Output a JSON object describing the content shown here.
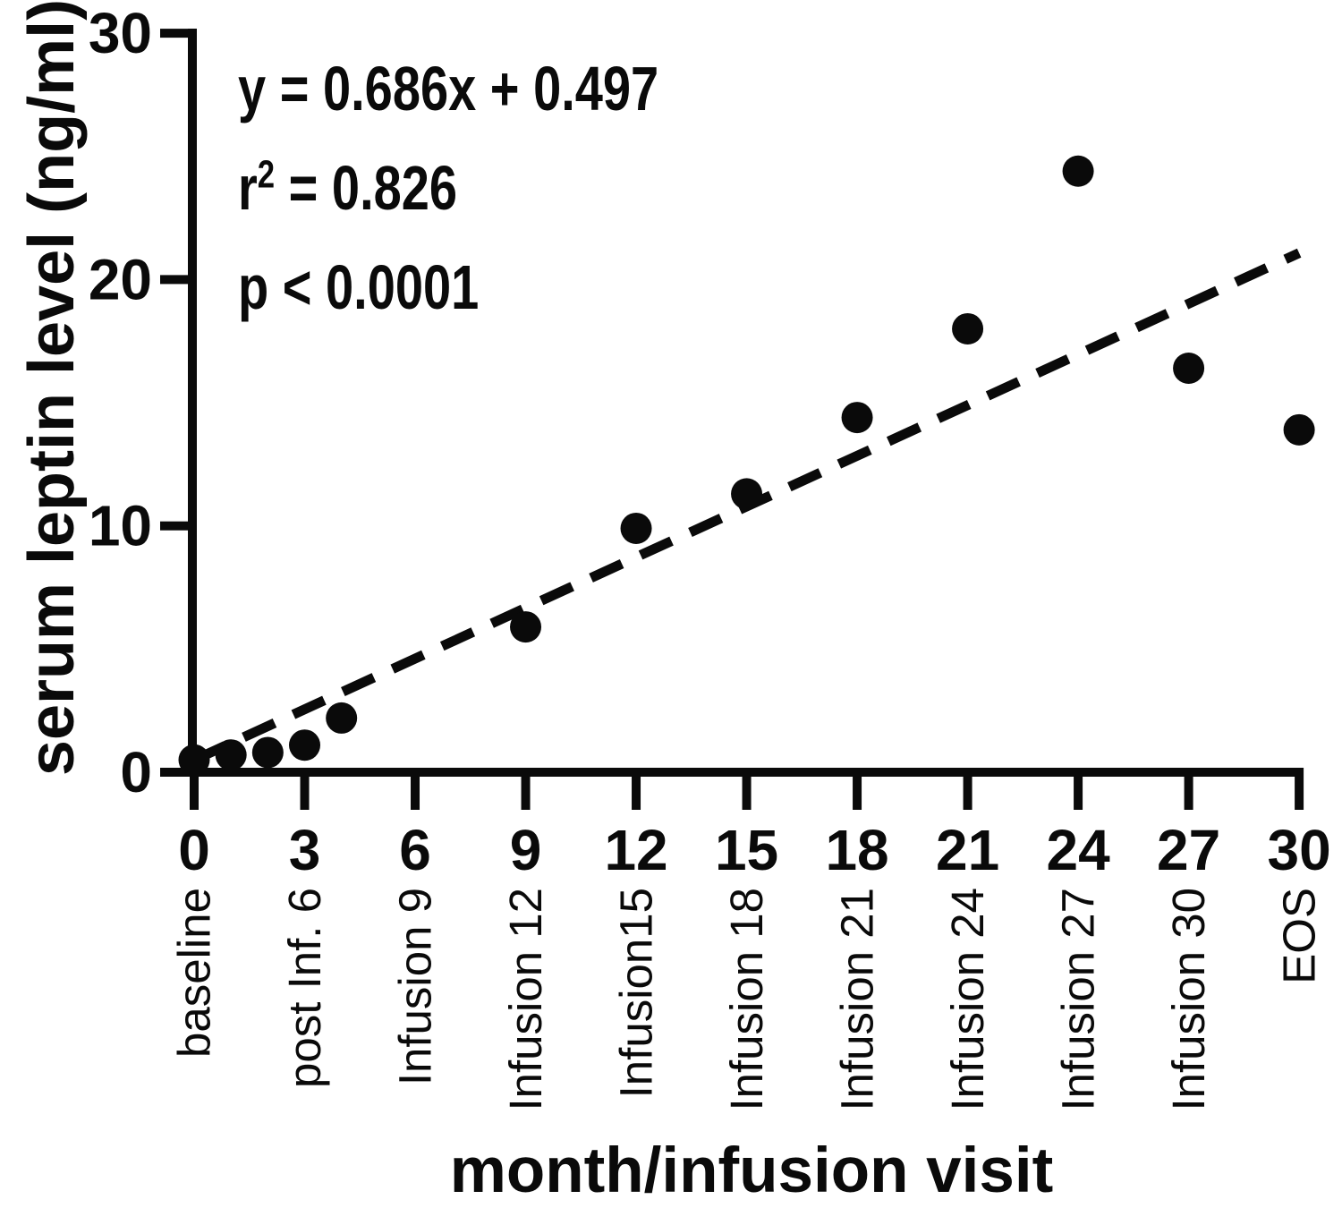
{
  "figure": {
    "y_axis_title": "serum leptin level (ng/ml)",
    "x_axis_title": "month/infusion visit",
    "annotation": {
      "equation": "y = 0.686x + 0.497",
      "r2_base": "r",
      "r2_sup": "2",
      "r2_rest": " = 0.826",
      "p_value": "p < 0.0001"
    },
    "colors": {
      "foreground": "#0a0a0a",
      "background": "#ffffff"
    }
  },
  "chart_data": {
    "type": "scatter",
    "title": "",
    "xlabel": "month/infusion visit",
    "ylabel": "serum leptin level (ng/ml)",
    "xlim": [
      0,
      30
    ],
    "ylim": [
      0,
      30
    ],
    "grid": false,
    "legend": false,
    "x_ticks": [
      0,
      3,
      6,
      9,
      12,
      15,
      18,
      21,
      24,
      27,
      30
    ],
    "x_tick_visit_labels": [
      "baseline",
      "post Inf. 6",
      "Infusion 9",
      "Infusion 12",
      "Infusion15",
      "Infusion 18",
      "Infusion 21",
      "Infusion 24",
      "Infusion 27",
      "Infusion 30",
      "EOS"
    ],
    "y_ticks": [
      0,
      10,
      20,
      30
    ],
    "marker": "filled-circle",
    "marker_color": "#0a0a0a",
    "points": [
      {
        "x": 0,
        "y": 0.5
      },
      {
        "x": 1,
        "y": 0.7
      },
      {
        "x": 2,
        "y": 0.8
      },
      {
        "x": 3,
        "y": 1.1
      },
      {
        "x": 4,
        "y": 2.2
      },
      {
        "x": 9,
        "y": 5.9
      },
      {
        "x": 12,
        "y": 9.9
      },
      {
        "x": 15,
        "y": 11.3
      },
      {
        "x": 18,
        "y": 14.4
      },
      {
        "x": 21,
        "y": 18.0
      },
      {
        "x": 24,
        "y": 24.4
      },
      {
        "x": 27,
        "y": 16.4
      },
      {
        "x": 30,
        "y": 13.9
      }
    ],
    "regression": {
      "equation": "y = 0.686x + 0.497",
      "slope": 0.686,
      "intercept": 0.497,
      "r_squared": 0.826,
      "p_value_text": "p < 0.0001",
      "line_style": "dashed",
      "line_x_range": [
        0,
        30
      ]
    }
  }
}
